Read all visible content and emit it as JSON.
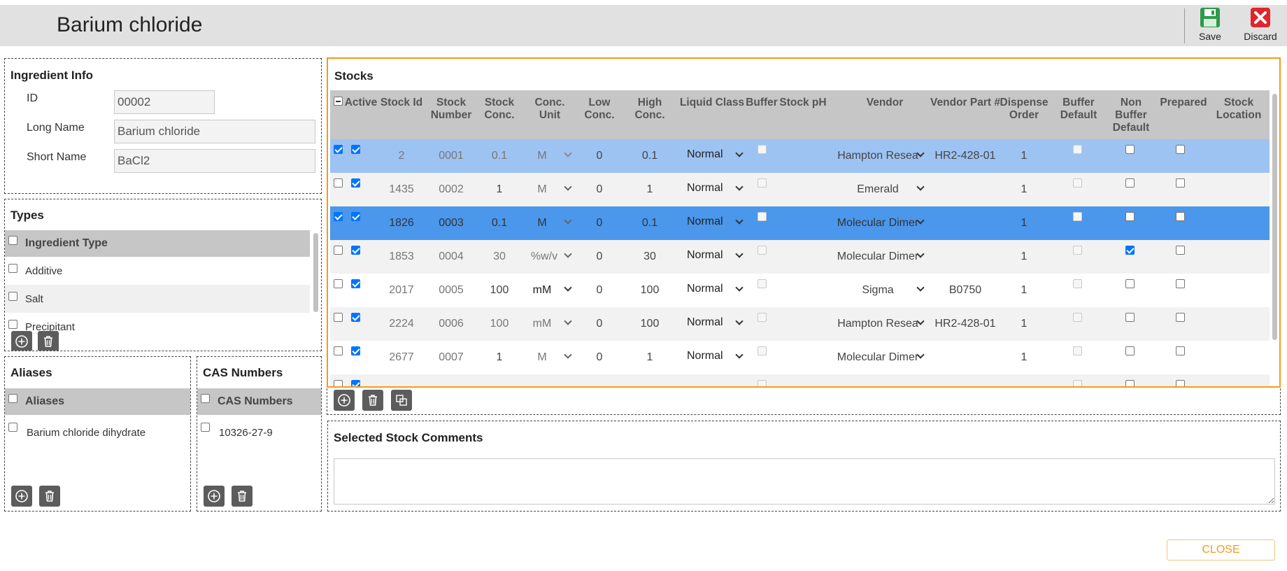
{
  "header": {
    "title": "Barium chloride",
    "save_label": "Save",
    "discard_label": "Discard"
  },
  "ingredient_info": {
    "title": "Ingredient Info",
    "id_label": "ID",
    "id_value": "00002",
    "long_name_label": "Long Name",
    "long_name_value": "Barium chloride",
    "short_name_label": "Short Name",
    "short_name_value": "BaCl2"
  },
  "types": {
    "title": "Types",
    "header": "Ingredient Type",
    "items": [
      "Additive",
      "Salt",
      "Precipitant"
    ]
  },
  "aliases": {
    "title": "Aliases",
    "header": "Aliases",
    "items": [
      "Barium chloride dihydrate"
    ]
  },
  "cas": {
    "title": "CAS Numbers",
    "header": "CAS Numbers",
    "items": [
      "10326-27-9"
    ]
  },
  "stocks": {
    "title": "Stocks",
    "columns": [
      "Active",
      "Stock Id",
      "Stock Number",
      "Stock Conc.",
      "Conc. Unit",
      "Low Conc.",
      "High Conc.",
      "Liquid Class",
      "Buffer",
      "Stock pH",
      "Vendor",
      "Vendor Part #",
      "Dispense Order",
      "Buffer Default",
      "Non Buffer Default",
      "Prepared",
      "Stock Location"
    ],
    "rows": [
      {
        "stock_id": "2",
        "stock_number": "0001",
        "conc": "0.1",
        "unit": "M",
        "low": "0",
        "high": "0.1",
        "liquid_class": "Normal",
        "vendor": "Hampton Resea",
        "part": "HR2-428-01",
        "order": "1"
      },
      {
        "stock_id": "1435",
        "stock_number": "0002",
        "conc": "1",
        "unit": "M",
        "low": "0",
        "high": "1",
        "liquid_class": "Normal",
        "vendor": "Emerald",
        "part": "",
        "order": "1"
      },
      {
        "stock_id": "1826",
        "stock_number": "0003",
        "conc": "0.1",
        "unit": "M",
        "low": "0",
        "high": "0.1",
        "liquid_class": "Normal",
        "vendor": "Molecular Dimer",
        "part": "",
        "order": "1"
      },
      {
        "stock_id": "1853",
        "stock_number": "0004",
        "conc": "30",
        "unit": "%w/v",
        "low": "0",
        "high": "30",
        "liquid_class": "Normal",
        "vendor": "Molecular Dimer",
        "part": "",
        "order": "1"
      },
      {
        "stock_id": "2017",
        "stock_number": "0005",
        "conc": "100",
        "unit": "mM",
        "low": "0",
        "high": "100",
        "liquid_class": "Normal",
        "vendor": "Sigma",
        "part": "B0750",
        "order": "1"
      },
      {
        "stock_id": "2224",
        "stock_number": "0006",
        "conc": "100",
        "unit": "mM",
        "low": "0",
        "high": "100",
        "liquid_class": "Normal",
        "vendor": "Hampton Resea",
        "part": "HR2-428-01",
        "order": "1"
      },
      {
        "stock_id": "2677",
        "stock_number": "0007",
        "conc": "1",
        "unit": "M",
        "low": "0",
        "high": "1",
        "liquid_class": "Normal",
        "vendor": "Molecular Dimer",
        "part": "",
        "order": "1"
      }
    ]
  },
  "comments": {
    "title": "Selected Stock Comments",
    "value": ""
  },
  "close_label": "CLOSE"
}
